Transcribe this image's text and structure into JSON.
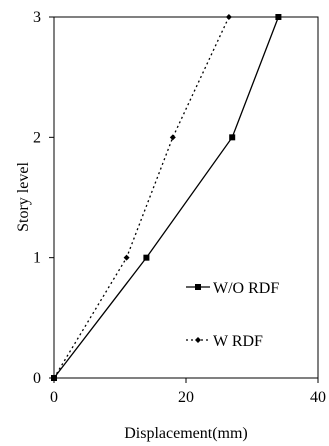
{
  "chart_data": {
    "type": "line",
    "xlabel": "Displacement(mm)",
    "ylabel": "Story level",
    "xlim": [
      0,
      40
    ],
    "ylim": [
      0,
      3
    ],
    "x_ticks": [
      "0",
      "20",
      "40"
    ],
    "y_ticks": [
      "0",
      "1",
      "2",
      "3"
    ],
    "grid": false,
    "legend_position": "right-lower",
    "series": [
      {
        "name": "W/O RDF",
        "style": "solid",
        "marker": "square",
        "color": "#000000",
        "points": [
          [
            0,
            0
          ],
          [
            14,
            1
          ],
          [
            27,
            2
          ],
          [
            34,
            3
          ]
        ]
      },
      {
        "name": "W RDF",
        "style": "dotted",
        "marker": "diamond",
        "color": "#000000",
        "points": [
          [
            0,
            0
          ],
          [
            11,
            1
          ],
          [
            18,
            2
          ],
          [
            26.5,
            3
          ]
        ]
      }
    ]
  }
}
